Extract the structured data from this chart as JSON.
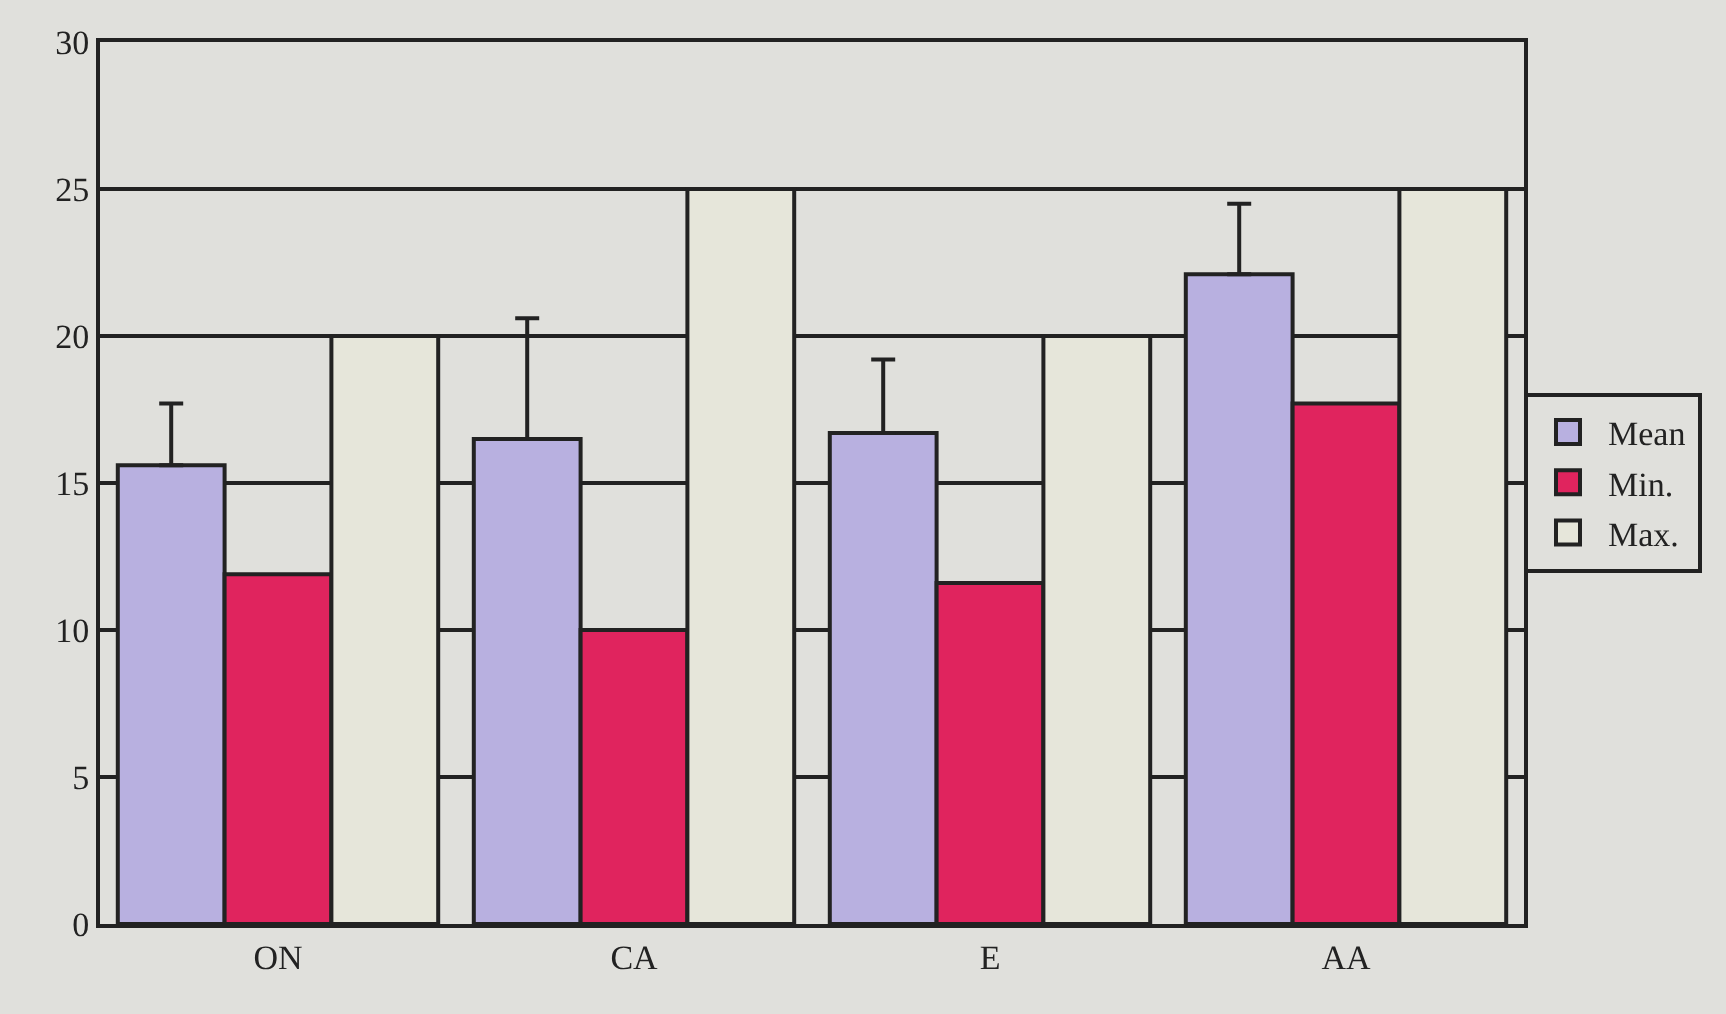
{
  "chart_data": {
    "type": "bar",
    "categories": [
      "ON",
      "CA",
      "E",
      "AA"
    ],
    "series": [
      {
        "name": "Mean",
        "color": "#b8b0e0",
        "values": [
          15.6,
          16.5,
          16.7,
          22.1
        ],
        "errors": [
          [
            15.6,
            17.7
          ],
          [
            16.5,
            20.6
          ],
          [
            16.7,
            19.2
          ],
          [
            22.1,
            24.5
          ]
        ]
      },
      {
        "name": "Min.",
        "color": "#e0245e",
        "values": [
          11.9,
          10,
          11.6,
          17.7
        ]
      },
      {
        "name": "Max.",
        "color": "#e6e6da",
        "values": [
          20,
          25,
          20,
          25
        ]
      }
    ],
    "ylim": [
      0,
      30
    ],
    "yticks": [
      0,
      5,
      10,
      15,
      20,
      25,
      30
    ],
    "grid": "y",
    "legend": "right"
  }
}
